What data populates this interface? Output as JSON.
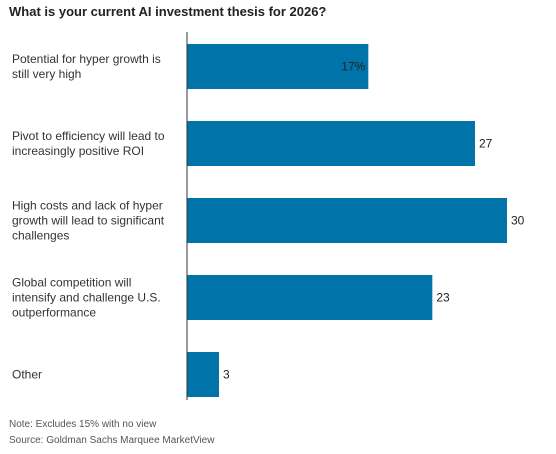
{
  "header": {
    "title": "What is your current AI investment thesis for 2026?"
  },
  "chart_data": {
    "type": "bar",
    "orientation": "horizontal",
    "categories": [
      [
        "Potential for hyper growth is",
        "still very high"
      ],
      [
        "Pivot to efficiency will lead to",
        "increasingly positive ROI"
      ],
      [
        "High costs and lack of hyper",
        "growth will lead to significant",
        "challenges"
      ],
      [
        "Global competition will",
        "intensify and challenge U.S.",
        "outperformance"
      ],
      [
        "Other"
      ]
    ],
    "values": [
      17,
      27,
      30,
      23,
      3
    ],
    "value_labels": [
      "17%",
      "27",
      "30",
      "23",
      "3"
    ],
    "label_positions": [
      "inside",
      "outside",
      "outside",
      "outside",
      "outside"
    ],
    "xlim": [
      0,
      30
    ],
    "grid": false,
    "bar_color": "#0073a8"
  },
  "footer": {
    "note": "Note: Excludes 15% with no view",
    "source": "Source: Goldman Sachs Marquee MarketView"
  }
}
